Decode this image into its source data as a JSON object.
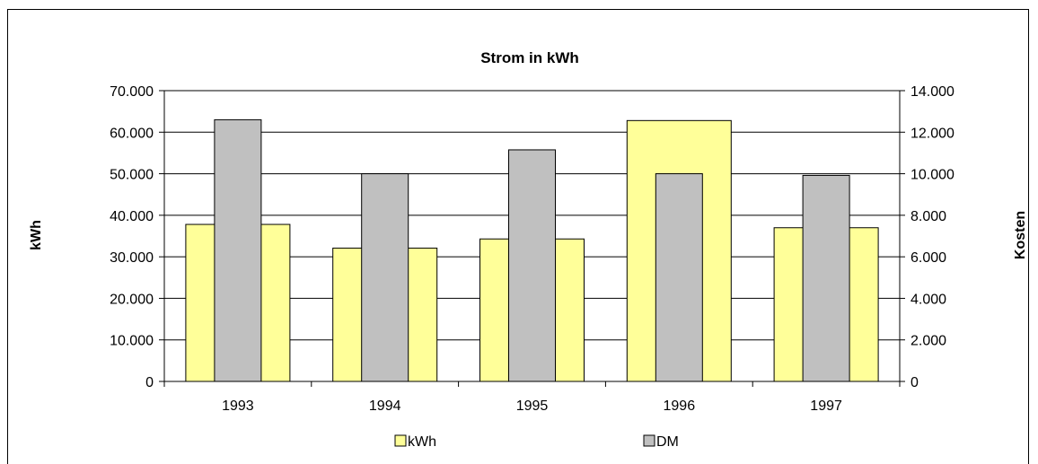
{
  "chart_data": {
    "type": "bar",
    "title": "Strom in kWh",
    "categories": [
      "1993",
      "1994",
      "1995",
      "1996",
      "1997"
    ],
    "series": [
      {
        "name": "kWh",
        "axis": "left",
        "color": "#ffff99",
        "values": [
          37800,
          32100,
          34300,
          62800,
          37000
        ]
      },
      {
        "name": "DM",
        "axis": "right",
        "color": "#c0c0c0",
        "values": [
          12600,
          10000,
          11150,
          10000,
          9920
        ]
      }
    ],
    "ylabel": "kWh",
    "ylim": [
      0,
      70000
    ],
    "yticks": [
      "0",
      "10.000",
      "20.000",
      "30.000",
      "40.000",
      "50.000",
      "60.000",
      "70.000"
    ],
    "y2label": "Kosten",
    "y2lim": [
      0,
      14000
    ],
    "y2ticks": [
      "0",
      "2.000",
      "4.000",
      "6.000",
      "8.000",
      "10.000",
      "12.000",
      "14.000"
    ],
    "grid": true,
    "legend": "bottom"
  }
}
